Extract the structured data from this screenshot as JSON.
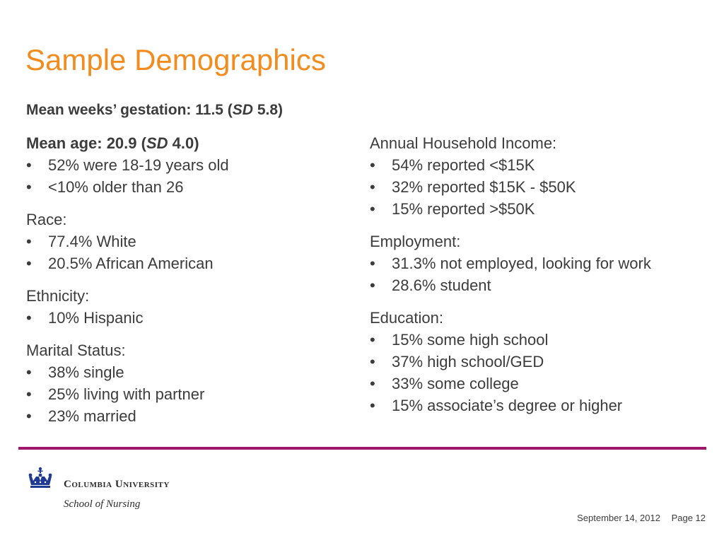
{
  "slide": {
    "title": "Sample Demographics",
    "gestation": {
      "prefix": "Mean weeks’ gestation: 11.5 (",
      "sd_label": "SD",
      "suffix": " 5.8)"
    }
  },
  "left_column": {
    "age": {
      "prefix": "Mean age: 20.9 (",
      "sd_label": "SD",
      "suffix": " 4.0)",
      "items": [
        "52% were 18-19 years old",
        "<10% older than 26"
      ]
    },
    "race": {
      "heading": "Race:",
      "items": [
        "77.4% White",
        "20.5% African American"
      ]
    },
    "ethnicity": {
      "heading": "Ethnicity:",
      "items": [
        "10% Hispanic"
      ]
    },
    "marital": {
      "heading": "Marital Status:",
      "items": [
        "38% single",
        "25% living with partner",
        "23% married"
      ]
    }
  },
  "right_column": {
    "income": {
      "heading": "Annual Household Income:",
      "items": [
        "54% reported <$15K",
        "32% reported $15K - $50K",
        "15% reported >$50K"
      ]
    },
    "employment": {
      "heading": "Employment:",
      "items": [
        "31.3% not employed, looking for work",
        "28.6% student"
      ]
    },
    "education": {
      "heading": "Education:",
      "items": [
        "15% some high school",
        "37% high school/GED",
        "33% some college",
        "15% associate’s degree or higher"
      ]
    }
  },
  "bullet_char": "•",
  "branding": {
    "university": "Columbia University",
    "school": "School of Nursing",
    "logo_icon": "crown-icon",
    "accent_color": "#a0166b",
    "title_color": "#f28c1e",
    "logo_color": "#1f3a93"
  },
  "footer": {
    "date": "September 14, 2012",
    "page": "Page 12"
  }
}
